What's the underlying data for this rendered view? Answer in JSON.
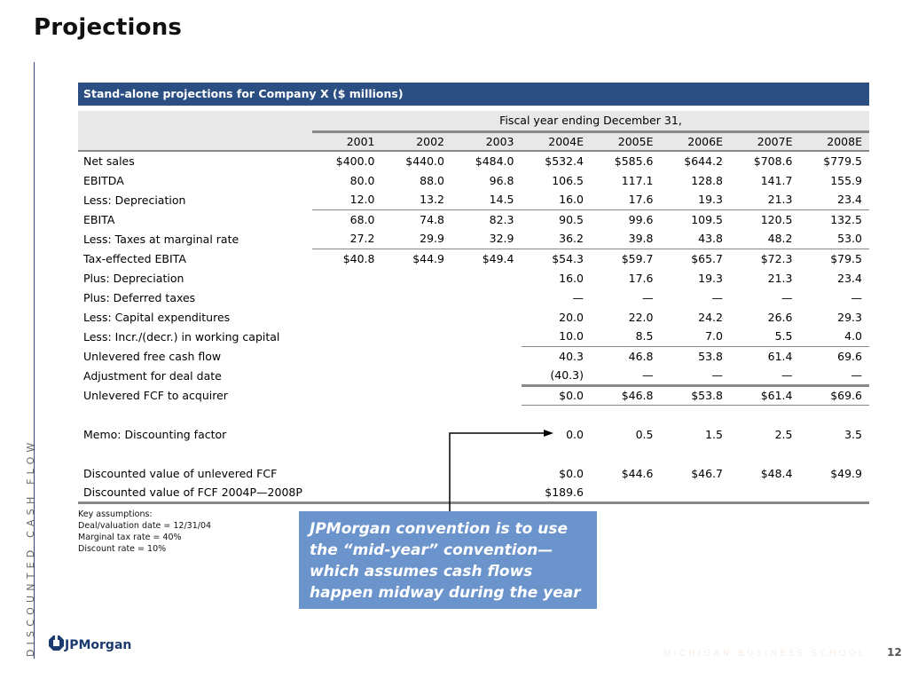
{
  "slide": {
    "title": "Projections",
    "section_label": "DISCOUNTED CASH FLOW",
    "footer": "MICHIGAN BUSINESS SCHOOL",
    "page_number": "12",
    "logo": "JPMorgan"
  },
  "table": {
    "banner": "Stand-alone projections for Company X ($ millions)",
    "group_header": "Fiscal year ending December 31,",
    "years": [
      "2001",
      "2002",
      "2003",
      "2004E",
      "2005E",
      "2006E",
      "2007E",
      "2008E"
    ],
    "rows": [
      {
        "label": "Net sales",
        "values": [
          "$400.0",
          "$440.0",
          "$484.0",
          "$532.4",
          "$585.6",
          "$644.2",
          "$708.6",
          "$779.5"
        ]
      },
      {
        "label": "EBITDA",
        "values": [
          "80.0",
          "88.0",
          "96.8",
          "106.5",
          "117.1",
          "128.8",
          "141.7",
          "155.9"
        ]
      },
      {
        "label": "Less: Depreciation",
        "values": [
          "12.0",
          "13.2",
          "14.5",
          "16.0",
          "17.6",
          "19.3",
          "21.3",
          "23.4"
        ]
      },
      {
        "label": "EBITA",
        "values": [
          "68.0",
          "74.8",
          "82.3",
          "90.5",
          "99.6",
          "109.5",
          "120.5",
          "132.5"
        ]
      },
      {
        "label": "Less: Taxes at marginal rate",
        "values": [
          "27.2",
          "29.9",
          "32.9",
          "36.2",
          "39.8",
          "43.8",
          "48.2",
          "53.0"
        ]
      },
      {
        "label": "Tax-effected EBITA",
        "values": [
          "$40.8",
          "$44.9",
          "$49.4",
          "$54.3",
          "$59.7",
          "$65.7",
          "$72.3",
          "$79.5"
        ]
      },
      {
        "label": "Plus: Depreciation",
        "values": [
          "",
          "",
          "",
          "16.0",
          "17.6",
          "19.3",
          "21.3",
          "23.4"
        ]
      },
      {
        "label": "Plus: Deferred taxes",
        "values": [
          "",
          "",
          "",
          "—",
          "—",
          "—",
          "—",
          "—"
        ]
      },
      {
        "label": "Less: Capital expenditures",
        "values": [
          "",
          "",
          "",
          "20.0",
          "22.0",
          "24.2",
          "26.6",
          "29.3"
        ]
      },
      {
        "label": "Less: Incr./(decr.) in working capital",
        "values": [
          "",
          "",
          "",
          "10.0",
          "8.5",
          "7.0",
          "5.5",
          "4.0"
        ]
      },
      {
        "label": "Unlevered free cash flow",
        "values": [
          "",
          "",
          "",
          "40.3",
          "46.8",
          "53.8",
          "61.4",
          "69.6"
        ]
      },
      {
        "label": "Adjustment for deal date",
        "values": [
          "",
          "",
          "",
          "(40.3)",
          "—",
          "—",
          "—",
          "—"
        ]
      },
      {
        "label": "Unlevered FCF to acquirer",
        "values": [
          "",
          "",
          "",
          "$0.0",
          "$46.8",
          "$53.8",
          "$61.4",
          "$69.6"
        ]
      },
      {
        "label": "",
        "values": [
          "",
          "",
          "",
          "",
          "",
          "",
          "",
          ""
        ]
      },
      {
        "label": "Memo: Discounting factor",
        "values": [
          "",
          "",
          "",
          "0.0",
          "0.5",
          "1.5",
          "2.5",
          "3.5"
        ]
      },
      {
        "label": "",
        "values": [
          "",
          "",
          "",
          "",
          "",
          "",
          "",
          ""
        ]
      },
      {
        "label": "Discounted value of unlevered FCF",
        "values": [
          "",
          "",
          "",
          "$0.0",
          "$44.6",
          "$46.7",
          "$48.4",
          "$49.9"
        ]
      },
      {
        "label": "Discounted value of FCF 2004P—2008P",
        "values": [
          "",
          "",
          "",
          "$189.6",
          "",
          "",
          "",
          ""
        ]
      }
    ]
  },
  "key_assumptions": {
    "heading": "Key assumptions:",
    "items": [
      "Deal/valuation date = 12/31/04",
      "Marginal tax rate = 40%",
      "Discount rate = 10%"
    ]
  },
  "callout": {
    "text": "JPMorgan convention is to use the “mid-year” convention—which assumes cash flows happen midway during the year",
    "color": "#6b93cc"
  },
  "colors": {
    "banner": "#2b4f82",
    "header_band": "#e8e8e8",
    "logo": "#1a3a70"
  }
}
